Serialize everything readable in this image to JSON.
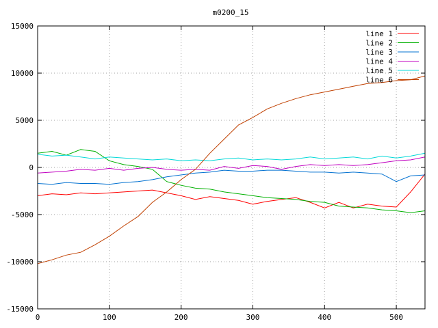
{
  "chart_data": {
    "type": "line",
    "title": "m0200_15",
    "xlabel": "",
    "ylabel": "",
    "xlim": [
      0,
      540
    ],
    "ylim": [
      -15000,
      15000
    ],
    "x_ticks": [
      0,
      100,
      200,
      300,
      400,
      500
    ],
    "y_ticks": [
      -15000,
      -10000,
      -5000,
      0,
      5000,
      10000,
      15000
    ],
    "grid": true,
    "legend_position": "top-right",
    "series": [
      {
        "name": "line 1",
        "color": "#ff0000",
        "x": [
          0,
          20,
          40,
          60,
          80,
          100,
          120,
          140,
          160,
          180,
          200,
          220,
          240,
          260,
          280,
          300,
          320,
          340,
          360,
          380,
          400,
          420,
          440,
          460,
          480,
          500,
          520,
          540
        ],
        "y": [
          -3000,
          -2800,
          -2900,
          -2700,
          -2800,
          -2700,
          -2600,
          -2500,
          -2400,
          -2700,
          -3000,
          -3400,
          -3100,
          -3300,
          -3500,
          -3900,
          -3600,
          -3400,
          -3200,
          -3700,
          -4300,
          -3700,
          -4300,
          -3900,
          -4100,
          -4200,
          -2600,
          -700
        ]
      },
      {
        "name": "line 2",
        "color": "#00b000",
        "x": [
          0,
          20,
          40,
          60,
          80,
          100,
          120,
          140,
          160,
          180,
          200,
          220,
          240,
          260,
          280,
          300,
          320,
          340,
          360,
          380,
          400,
          420,
          440,
          460,
          480,
          500,
          520,
          540
        ],
        "y": [
          1500,
          1700,
          1300,
          1900,
          1700,
          700,
          300,
          100,
          -200,
          -1500,
          -1900,
          -2200,
          -2300,
          -2600,
          -2800,
          -3000,
          -3200,
          -3300,
          -3400,
          -3600,
          -3700,
          -4100,
          -4200,
          -4300,
          -4500,
          -4600,
          -4800,
          -4600
        ]
      },
      {
        "name": "line 3",
        "color": "#0070d0",
        "x": [
          0,
          20,
          40,
          60,
          80,
          100,
          120,
          140,
          160,
          180,
          200,
          220,
          240,
          260,
          280,
          300,
          320,
          340,
          360,
          380,
          400,
          420,
          440,
          460,
          480,
          500,
          520,
          540
        ],
        "y": [
          -1700,
          -1800,
          -1600,
          -1700,
          -1700,
          -1800,
          -1600,
          -1500,
          -1300,
          -1000,
          -800,
          -600,
          -500,
          -300,
          -400,
          -400,
          -300,
          -300,
          -400,
          -500,
          -500,
          -600,
          -500,
          -600,
          -700,
          -1500,
          -900,
          -800
        ]
      },
      {
        "name": "line 4",
        "color": "#c000c0",
        "x": [
          0,
          20,
          40,
          60,
          80,
          100,
          120,
          140,
          160,
          180,
          200,
          220,
          240,
          260,
          280,
          300,
          320,
          340,
          360,
          380,
          400,
          420,
          440,
          460,
          480,
          500,
          520,
          540
        ],
        "y": [
          -600,
          -500,
          -400,
          -200,
          -300,
          -100,
          -300,
          -100,
          0,
          -200,
          -300,
          -200,
          -300,
          100,
          -100,
          200,
          100,
          -200,
          100,
          300,
          200,
          300,
          200,
          300,
          500,
          700,
          800,
          1100
        ]
      },
      {
        "name": "line 5",
        "color": "#00d8d8",
        "x": [
          0,
          20,
          40,
          60,
          80,
          100,
          120,
          140,
          160,
          180,
          200,
          220,
          240,
          260,
          280,
          300,
          320,
          340,
          360,
          380,
          400,
          420,
          440,
          460,
          480,
          500,
          520,
          540
        ],
        "y": [
          1400,
          1200,
          1300,
          1100,
          900,
          1100,
          1000,
          900,
          800,
          900,
          700,
          800,
          700,
          900,
          1000,
          800,
          900,
          800,
          900,
          1100,
          900,
          1000,
          1100,
          900,
          1200,
          1000,
          1200,
          1500
        ]
      },
      {
        "name": "line 6",
        "color": "#c04000",
        "x": [
          0,
          20,
          40,
          60,
          80,
          100,
          120,
          140,
          160,
          180,
          200,
          220,
          240,
          260,
          280,
          300,
          320,
          340,
          360,
          380,
          400,
          420,
          440,
          460,
          480,
          500,
          520,
          540
        ],
        "y": [
          -10200,
          -9800,
          -9300,
          -9000,
          -8200,
          -7300,
          -6200,
          -5200,
          -3700,
          -2600,
          -1300,
          -200,
          1500,
          3000,
          4500,
          5300,
          6200,
          6800,
          7300,
          7700,
          8000,
          8300,
          8600,
          8900,
          9000,
          9200,
          9300,
          9700
        ]
      }
    ]
  }
}
